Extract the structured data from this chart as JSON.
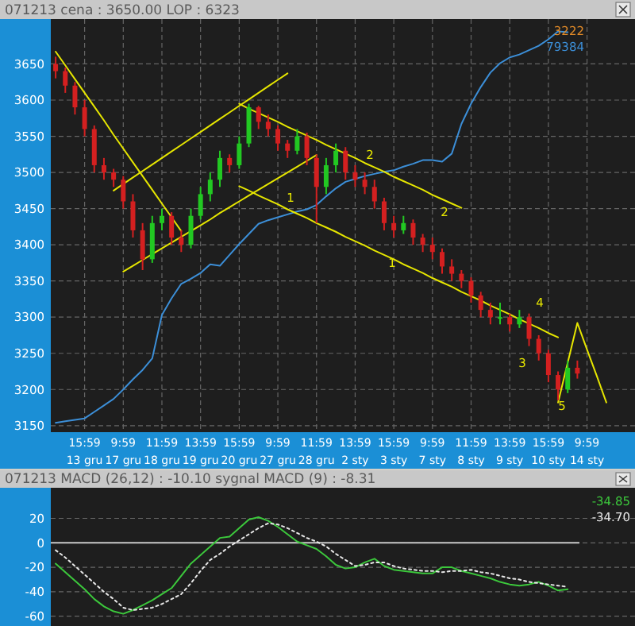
{
  "chart_data": [
    {
      "type": "candlestick",
      "title": "071213 cena : 3650.00 LOP : 6323",
      "categories": [
        null,
        null,
        null,
        "15:59\n13 gru",
        null,
        null,
        null,
        "9:59\n17 gru",
        null,
        null,
        null,
        "11:59\n18 gru",
        null,
        null,
        null,
        "13:59\n19 gru",
        null,
        null,
        null,
        "15:59\n20 gru",
        null,
        null,
        null,
        "9:59\n27 gru",
        null,
        null,
        null,
        "11:59\n28 gru",
        null,
        null,
        null,
        "13:59\n2 sty",
        null,
        null,
        null,
        "15:59\n3 sty",
        null,
        null,
        null,
        "9:59\n7 sty",
        null,
        null,
        null,
        "11:59\n8 sty",
        null,
        null,
        null,
        "13:59\n9 sty",
        null,
        null,
        null,
        "15:59\n10 sty",
        null,
        null,
        null,
        "9:59\n14 sty",
        null,
        null
      ],
      "ohlc": [
        [
          3650,
          3660,
          3630,
          3640
        ],
        [
          3640,
          3645,
          3610,
          3620
        ],
        [
          3620,
          3625,
          3580,
          3590
        ],
        [
          3590,
          3600,
          3550,
          3560
        ],
        [
          3560,
          3565,
          3500,
          3510
        ],
        [
          3510,
          3520,
          3490,
          3500
        ],
        [
          3500,
          3505,
          3480,
          3490
        ],
        [
          3490,
          3495,
          3450,
          3460
        ],
        [
          3460,
          3470,
          3410,
          3420
        ],
        [
          3420,
          3430,
          3365,
          3380
        ],
        [
          3380,
          3440,
          3375,
          3430
        ],
        [
          3430,
          3450,
          3420,
          3440
        ],
        [
          3440,
          3445,
          3400,
          3410
        ],
        [
          3410,
          3420,
          3390,
          3400
        ],
        [
          3400,
          3450,
          3395,
          3440
        ],
        [
          3440,
          3480,
          3435,
          3470
        ],
        [
          3470,
          3500,
          3460,
          3490
        ],
        [
          3490,
          3530,
          3480,
          3520
        ],
        [
          3520,
          3525,
          3500,
          3510
        ],
        [
          3510,
          3550,
          3505,
          3540
        ],
        [
          3540,
          3595,
          3535,
          3590
        ],
        [
          3590,
          3592,
          3560,
          3570
        ],
        [
          3570,
          3580,
          3550,
          3560
        ],
        [
          3560,
          3565,
          3530,
          3540
        ],
        [
          3540,
          3545,
          3520,
          3530
        ],
        [
          3530,
          3560,
          3525,
          3550
        ],
        [
          3550,
          3555,
          3510,
          3520
        ],
        [
          3520,
          3525,
          3430,
          3480
        ],
        [
          3480,
          3520,
          3470,
          3510
        ],
        [
          3510,
          3540,
          3500,
          3530
        ],
        [
          3530,
          3535,
          3490,
          3500
        ],
        [
          3500,
          3510,
          3480,
          3490
        ],
        [
          3490,
          3500,
          3470,
          3480
        ],
        [
          3480,
          3490,
          3450,
          3460
        ],
        [
          3460,
          3465,
          3420,
          3430
        ],
        [
          3430,
          3440,
          3410,
          3420
        ],
        [
          3420,
          3440,
          3415,
          3430
        ],
        [
          3430,
          3435,
          3400,
          3410
        ],
        [
          3410,
          3415,
          3390,
          3400
        ],
        [
          3400,
          3410,
          3380,
          3390
        ],
        [
          3390,
          3395,
          3360,
          3370
        ],
        [
          3370,
          3380,
          3350,
          3360
        ],
        [
          3360,
          3365,
          3340,
          3350
        ],
        [
          3350,
          3355,
          3320,
          3330
        ],
        [
          3330,
          3335,
          3300,
          3310
        ],
        [
          3310,
          3320,
          3290,
          3300
        ],
        [
          3300,
          3320,
          3290,
          3300
        ],
        [
          3300,
          3305,
          3280,
          3290
        ],
        [
          3290,
          3310,
          3285,
          3300
        ],
        [
          3300,
          3305,
          3260,
          3270
        ],
        [
          3270,
          3275,
          3240,
          3250
        ],
        [
          3250,
          3255,
          3210,
          3220
        ],
        [
          3220,
          3225,
          3185,
          3200
        ],
        [
          3200,
          3240,
          3195,
          3230
        ],
        [
          3230,
          3240,
          3215,
          3222
        ],
        null,
        null,
        null
      ],
      "series": [
        {
          "type": "line",
          "color": "#3c8fd8",
          "values": [
            3154,
            3156,
            3158,
            3160,
            3169,
            3178,
            3187,
            3200,
            3214,
            3227,
            3243,
            3303,
            3326,
            3346,
            3353,
            3361,
            3373,
            3371,
            3386,
            3401,
            3415,
            3429,
            3434,
            3438,
            3442,
            3446,
            3449,
            3455,
            3467,
            3478,
            3487,
            3491,
            3495,
            3498,
            3501,
            3503,
            3508,
            3512,
            3517,
            3517,
            3515,
            3526,
            3567,
            3595,
            3618,
            3638,
            3651,
            3659,
            3663,
            3669,
            3675,
            3684,
            3695,
            3694,
            null,
            null,
            null,
            null
          ]
        },
        {
          "type": "line",
          "color": "#e6e600",
          "values": [
            3667,
            3648,
            3629,
            3610,
            3591,
            3572,
            3552,
            3533,
            3514,
            3495,
            3476,
            3457,
            3438,
            3419,
            null,
            null,
            null,
            null,
            null,
            null,
            null,
            null,
            null,
            null,
            null,
            null,
            null,
            null,
            null,
            null,
            null,
            null,
            null,
            null,
            null,
            null,
            null,
            null,
            null,
            null,
            null,
            null,
            null,
            null,
            null,
            null,
            null,
            null,
            null,
            null,
            null,
            null,
            null,
            null,
            null,
            null,
            null,
            null
          ]
        },
        {
          "type": "line",
          "color": "#e6e600",
          "values": [
            null,
            null,
            null,
            null,
            null,
            null,
            3475,
            3484,
            3493,
            3502,
            3511,
            3520,
            3529,
            3538,
            3547,
            3556,
            3565,
            3574,
            3583,
            3592,
            3601,
            3610,
            3619,
            3628,
            3637,
            null,
            null,
            null,
            null,
            null,
            null,
            null,
            null,
            null,
            null,
            null,
            null,
            null,
            null,
            null,
            null,
            null,
            null,
            null,
            null,
            null,
            null,
            null,
            null,
            null,
            null,
            null,
            null,
            null,
            null,
            null,
            null,
            null
          ]
        },
        {
          "type": "line",
          "color": "#e6e600",
          "values": [
            null,
            null,
            null,
            null,
            null,
            null,
            null,
            3363,
            3371,
            3379,
            3387,
            3395,
            3403,
            3411,
            3419,
            3427,
            3435,
            3444,
            3452,
            3460,
            3468,
            3476,
            3484,
            3492,
            3500,
            3508,
            3516,
            3524,
            null,
            null,
            null,
            null,
            null,
            null,
            null,
            null,
            null,
            null,
            null,
            null,
            null,
            null,
            null,
            null,
            null,
            null,
            null,
            null,
            null,
            null,
            null,
            null,
            null,
            null,
            null,
            null,
            null,
            null
          ]
        },
        {
          "type": "line",
          "color": "#e6e600",
          "values": [
            null,
            null,
            null,
            null,
            null,
            null,
            null,
            null,
            null,
            null,
            null,
            null,
            null,
            null,
            null,
            null,
            null,
            null,
            null,
            3595,
            3588,
            3582,
            3576,
            3570,
            3563,
            3557,
            3551,
            3545,
            3538,
            3532,
            3526,
            3520,
            3513,
            3507,
            3501,
            3494,
            3488,
            3482,
            3476,
            3469,
            3463,
            3457,
            3451,
            null,
            null,
            null,
            null,
            null,
            null,
            null,
            null,
            null,
            null,
            null,
            null,
            null,
            null,
            null
          ]
        },
        {
          "type": "line",
          "color": "#e6e600",
          "values": [
            null,
            null,
            null,
            null,
            null,
            null,
            null,
            null,
            null,
            null,
            null,
            null,
            null,
            null,
            null,
            null,
            null,
            null,
            null,
            3481,
            3475,
            3468,
            3462,
            3456,
            3449,
            3443,
            3437,
            3430,
            3424,
            3418,
            3411,
            3405,
            3399,
            3392,
            3386,
            3380,
            3373,
            3367,
            3361,
            3354,
            3348,
            3342,
            3335,
            3329,
            3323,
            3316,
            3310,
            3304,
            3297,
            3291,
            3285,
            3278,
            3272,
            null,
            null,
            null,
            null,
            null
          ]
        },
        {
          "type": "line",
          "color": "#e6e600",
          "values": [
            null,
            null,
            null,
            null,
            null,
            null,
            null,
            null,
            null,
            null,
            null,
            null,
            null,
            null,
            null,
            null,
            null,
            null,
            null,
            null,
            null,
            null,
            null,
            null,
            null,
            null,
            null,
            null,
            null,
            null,
            null,
            null,
            null,
            null,
            null,
            null,
            null,
            null,
            null,
            null,
            null,
            null,
            null,
            null,
            null,
            null,
            null,
            null,
            null,
            null,
            null,
            null,
            3182,
            3237,
            3292,
            3255,
            3219,
            3182
          ]
        }
      ],
      "ylim": [
        3141,
        3712
      ],
      "yticks": [
        3150,
        3200,
        3250,
        3300,
        3350,
        3400,
        3450,
        3500,
        3550,
        3600,
        3650
      ],
      "grid": true,
      "annotations": [
        "3222",
        "79384",
        "1",
        "1",
        "2",
        "2",
        "3",
        "4",
        "5"
      ]
    },
    {
      "type": "line",
      "title": "071213 MACD (26,12) : -10.10 sygnal MACD (9) : -8.31",
      "categories": [
        null,
        null,
        null,
        null,
        null,
        null,
        null,
        null,
        null,
        null,
        null,
        null,
        null,
        null,
        null,
        null,
        null,
        null,
        null,
        null,
        null,
        null,
        null,
        null,
        null,
        null,
        null,
        null,
        null,
        null,
        null,
        null,
        null,
        null,
        null,
        null,
        null,
        null,
        null,
        null,
        null,
        null,
        null,
        null,
        null,
        null,
        null,
        null,
        null,
        null,
        null,
        null,
        null,
        null,
        null,
        null,
        null,
        null
      ],
      "series": [
        {
          "color": "#3cc83c",
          "line_style": "solid",
          "values": [
            -17,
            -24,
            -31,
            -38,
            -46,
            -52,
            -56,
            -58,
            -55,
            -51,
            -47,
            -42,
            -37,
            -27,
            -17,
            -10,
            -3,
            4,
            5,
            12,
            19,
            21,
            18,
            13,
            7,
            1,
            -2,
            -5,
            -11,
            -18,
            -21,
            -20,
            -16,
            -13,
            -19,
            -22,
            -23,
            -24,
            -25,
            -25,
            -20,
            -20,
            -23,
            -25,
            -27,
            -29,
            -32,
            -34,
            -35,
            -34,
            -32,
            -35,
            -39,
            -38,
            null,
            null,
            null,
            null
          ]
        },
        {
          "color": "#e8e8e8",
          "line_style": "dotted",
          "values": [
            -6,
            -12,
            -19,
            -26,
            -33,
            -40,
            -46,
            -53,
            -55,
            -54,
            -53,
            -50,
            -46,
            -42,
            -33,
            -23,
            -14,
            -9,
            -3,
            2,
            7,
            12,
            16,
            15,
            12,
            8,
            4,
            1,
            -3,
            -9,
            -14,
            -19,
            -18,
            -16,
            -16,
            -19,
            -21,
            -22,
            -23,
            -23,
            -24,
            -23,
            -23,
            -22,
            -24,
            -25,
            -27,
            -29,
            -30,
            -32,
            -33,
            -34,
            -35,
            -36,
            null,
            null,
            null,
            null
          ]
        }
      ],
      "ylim": [
        -68,
        45
      ],
      "yticks": [
        20,
        0,
        -20,
        -40,
        -60
      ],
      "tick_labels": "y",
      "grid": "y",
      "ref_lines": [
        {
          "axis": "y",
          "value": 0,
          "color": "#c8c8c8"
        }
      ],
      "annotations": [
        "-34.85",
        "-34.70"
      ]
    }
  ]
}
